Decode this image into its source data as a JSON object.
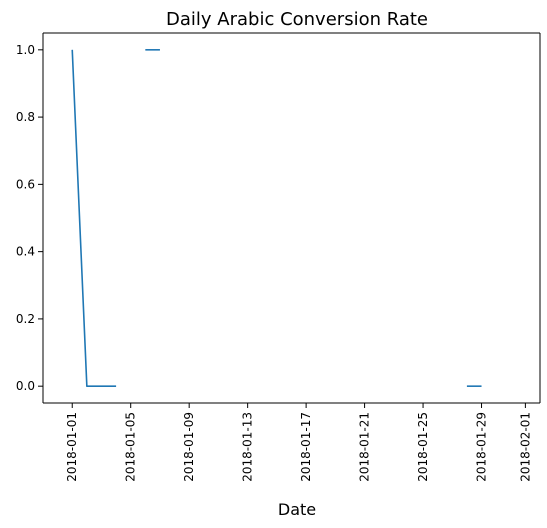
{
  "chart_data": {
    "type": "line",
    "title": "Daily Arabic Conversion Rate",
    "xlabel": "Date",
    "ylabel": "",
    "x_type": "date",
    "xlim": [
      "2017-12-30",
      "2018-02-02"
    ],
    "ylim": [
      -0.05,
      1.05
    ],
    "x_ticks": [
      "2018-01-01",
      "2018-01-05",
      "2018-01-09",
      "2018-01-13",
      "2018-01-17",
      "2018-01-21",
      "2018-01-25",
      "2018-01-29",
      "2018-02-01"
    ],
    "y_ticks": [
      0.0,
      0.2,
      0.4,
      0.6,
      0.8,
      1.0
    ],
    "y_tick_labels": [
      "0.0",
      "0.2",
      "0.4",
      "0.6",
      "0.8",
      "1.0"
    ],
    "grid": false,
    "series": [
      {
        "color": "#1f77b4",
        "x": [
          "2018-01-01",
          "2018-01-02",
          "2018-01-03",
          "2018-01-04",
          "2018-01-05",
          "2018-01-06",
          "2018-01-07",
          "2018-01-08",
          "2018-01-09",
          "2018-01-10",
          "2018-01-11",
          "2018-01-12",
          "2018-01-13",
          "2018-01-14",
          "2018-01-15",
          "2018-01-16",
          "2018-01-17",
          "2018-01-18",
          "2018-01-19",
          "2018-01-20",
          "2018-01-21",
          "2018-01-22",
          "2018-01-23",
          "2018-01-24",
          "2018-01-25",
          "2018-01-26",
          "2018-01-27",
          "2018-01-28",
          "2018-01-29"
        ],
        "values": [
          1.0,
          0.0,
          0.0,
          0.0,
          null,
          1.0,
          1.0,
          null,
          null,
          null,
          null,
          null,
          null,
          null,
          null,
          null,
          null,
          null,
          null,
          null,
          null,
          null,
          null,
          null,
          null,
          null,
          null,
          0.0,
          0.0
        ]
      }
    ]
  }
}
